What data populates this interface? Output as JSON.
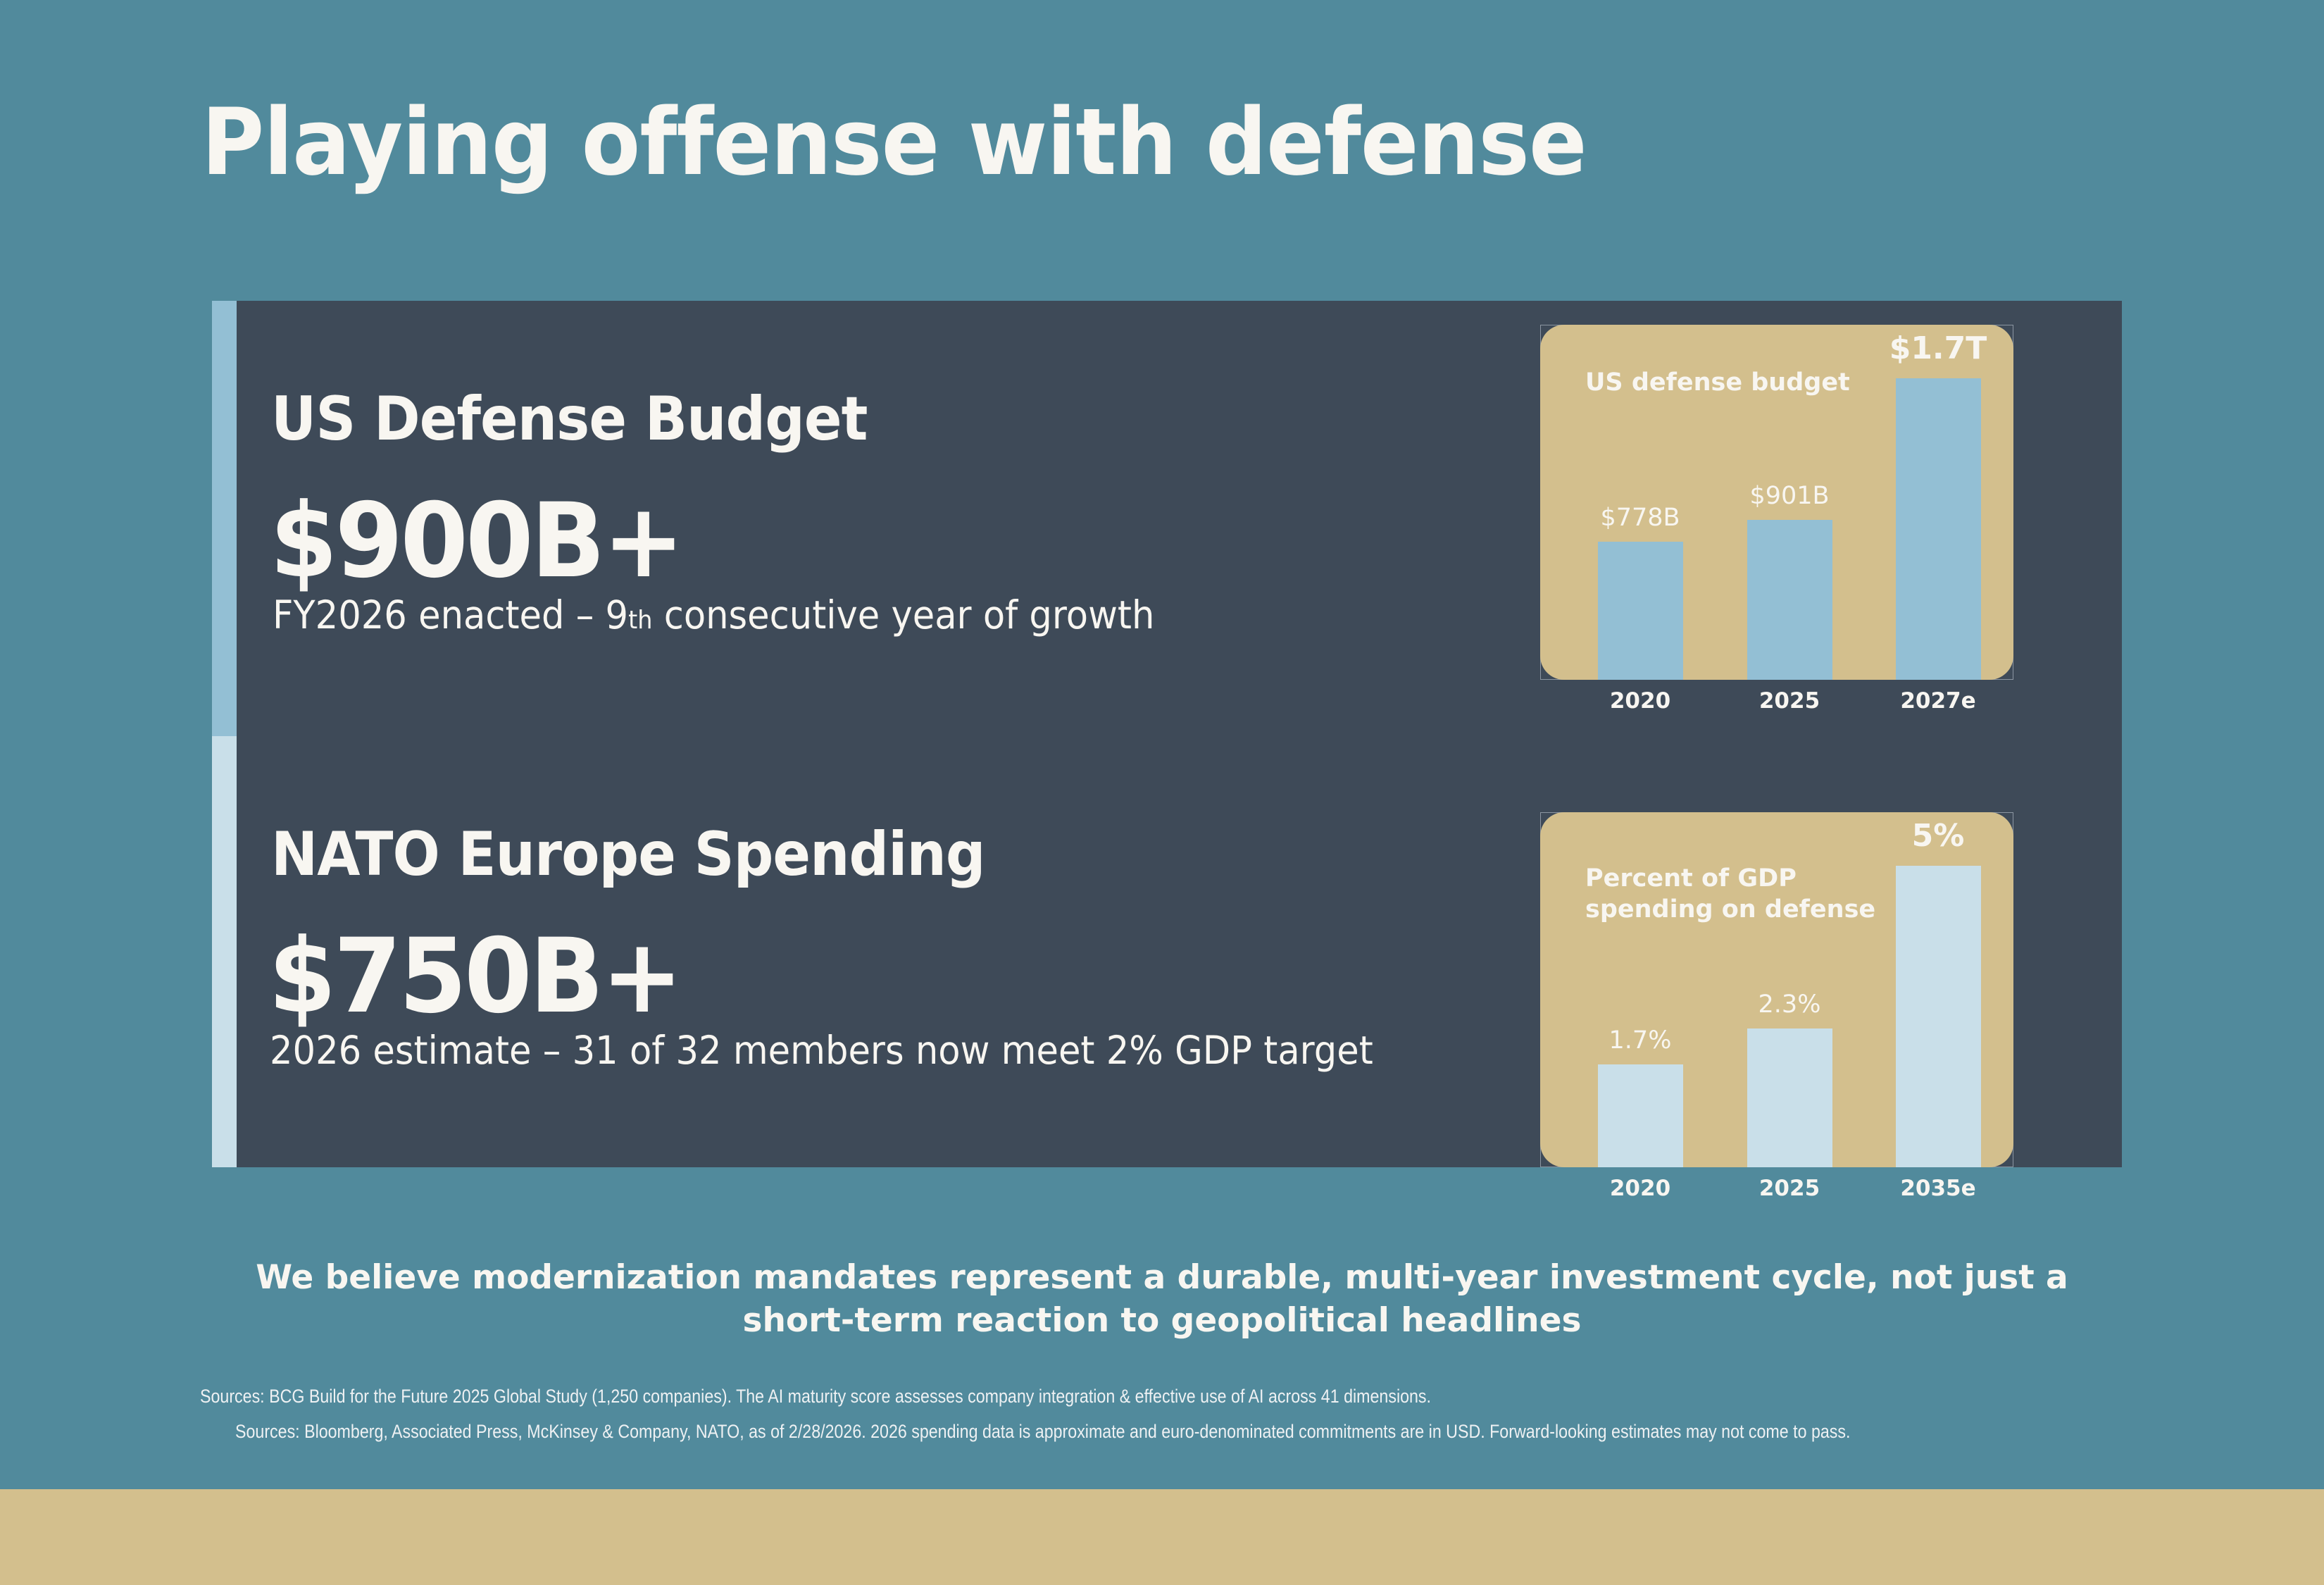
{
  "page": {
    "title": "Playing offense with defense",
    "colors": {
      "background": "#518a9c",
      "panel": "#3e4a58",
      "card": "#d3bf8d",
      "accent_us": "#93bfd4",
      "accent_nato": "#c9dfe9",
      "text": "#f8f6f1"
    }
  },
  "sections": [
    {
      "heading": "US Defense Budget",
      "value": "$900B+",
      "subtitle_pre": "FY2026 enacted – 9",
      "subtitle_sup": "th",
      "subtitle_post": " consecutive year of growth"
    },
    {
      "heading": "NATO Europe Spending",
      "value": "$750B+",
      "subtitle": "2026 estimate – 31 of 32 members now meet 2% GDP target"
    }
  ],
  "chart_data": [
    {
      "type": "bar",
      "title": "US defense budget",
      "categories": [
        "2020",
        "2025",
        "2027e"
      ],
      "values": [
        778,
        901,
        1700
      ],
      "value_unit": "USD billions",
      "data_labels": [
        "$778B",
        "$901B",
        "$1.7T"
      ],
      "highlight_index": 2,
      "bar_color": "#93bfd4",
      "xlabel": "",
      "ylabel": "",
      "grid": false,
      "legend": "none"
    },
    {
      "type": "bar",
      "title": "Percent of GDP spending on defense",
      "title_lines": [
        "Percent of GDP",
        "spending on defense"
      ],
      "categories": [
        "2020",
        "2025",
        "2035e"
      ],
      "values": [
        1.7,
        2.3,
        5.0
      ],
      "value_unit": "% of GDP",
      "data_labels": [
        "1.7%",
        "2.3%",
        "5%"
      ],
      "highlight_index": 2,
      "bar_color": "#c9dfe9",
      "xlabel": "",
      "ylabel": "",
      "grid": false,
      "legend": "none"
    }
  ],
  "takeaway": "We believe modernization mandates represent a durable, multi-year investment cycle, not just a short-term reaction to geopolitical headlines",
  "footnotes": [
    "Sources: BCG Build for the Future 2025 Global Study (1,250 companies). The AI maturity score assesses company integration & effective use of AI across 41 dimensions.",
    "Sources: Bloomberg, Associated Press, McKinsey & Company, NATO, as of 2/28/2026. 2026 spending data is approximate and euro-denominated commitments are in USD. Forward-looking estimates may not come to pass."
  ]
}
